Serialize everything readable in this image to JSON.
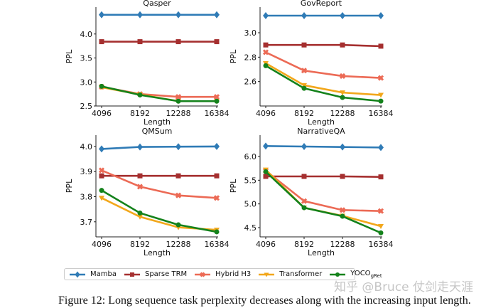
{
  "series_style": [
    {
      "name": "Mamba",
      "color": "#2f7bb6",
      "marker": "diamond"
    },
    {
      "name": "Sparse TRM",
      "color": "#a52f2f",
      "marker": "square"
    },
    {
      "name": "Hybrid H3",
      "color": "#ec6a55",
      "marker": "x"
    },
    {
      "name": "Transformer",
      "color": "#f2a71b",
      "marker": "triangle-down"
    },
    {
      "name": "YOCO",
      "name_sub": "gRet",
      "color": "#14821b",
      "marker": "circle"
    }
  ],
  "legend": {
    "items": [
      "Mamba",
      "Sparse TRM",
      "Hybrid H3",
      "Transformer",
      "YOCO"
    ],
    "yoco_sub": "gRet",
    "placement": "bottom"
  },
  "caption": "Figure 12: Long sequence task perplexity decreases along with the increasing input length.",
  "watermark": "知乎 @Bruce 仗剑走天涯",
  "chart_data": [
    {
      "type": "line",
      "title": "Qasper",
      "xlabel": "Length",
      "ylabel": "PPL",
      "categories": [
        4096,
        8192,
        12288,
        16384
      ],
      "ylim": [
        2.5,
        4.56
      ],
      "yticks": [
        2.5,
        3.0,
        3.5,
        4.0
      ],
      "ytick_labels": [
        "2.5",
        "3.0",
        "3.5",
        "4.0"
      ],
      "series": [
        {
          "name": "Mamba",
          "values": [
            4.4,
            4.4,
            4.4,
            4.4
          ]
        },
        {
          "name": "Sparse TRM",
          "values": [
            3.84,
            3.84,
            3.84,
            3.84
          ]
        },
        {
          "name": "Hybrid H3",
          "values": [
            2.9,
            2.75,
            2.69,
            2.69
          ]
        },
        {
          "name": "Transformer",
          "values": [
            2.89,
            2.74,
            2.6,
            2.6
          ]
        },
        {
          "name": "YOCO",
          "values": [
            2.91,
            2.73,
            2.6,
            2.6
          ]
        }
      ]
    },
    {
      "type": "line",
      "title": "GovReport",
      "xlabel": "Length",
      "ylabel": "PPL",
      "categories": [
        4096,
        8192,
        12288,
        16384
      ],
      "ylim": [
        2.4,
        3.21
      ],
      "yticks": [
        2.6,
        2.8,
        3.0
      ],
      "ytick_labels": [
        "2.6",
        "2.8",
        "3.0"
      ],
      "series": [
        {
          "name": "Mamba",
          "values": [
            3.14,
            3.14,
            3.14,
            3.14
          ]
        },
        {
          "name": "Sparse TRM",
          "values": [
            2.9,
            2.9,
            2.9,
            2.89
          ]
        },
        {
          "name": "Hybrid H3",
          "values": [
            2.84,
            2.69,
            2.645,
            2.63
          ]
        },
        {
          "name": "Transformer",
          "values": [
            2.75,
            2.57,
            2.51,
            2.49
          ]
        },
        {
          "name": "YOCO",
          "values": [
            2.73,
            2.545,
            2.47,
            2.44
          ]
        }
      ]
    },
    {
      "type": "line",
      "title": "QMSum",
      "xlabel": "Length",
      "ylabel": "PPL",
      "categories": [
        4096,
        8192,
        12288,
        16384
      ],
      "ylim": [
        3.64,
        4.045
      ],
      "yticks": [
        3.7,
        3.8,
        3.9,
        4.0
      ],
      "ytick_labels": [
        "3.7",
        "3.8",
        "3.9",
        "4.0"
      ],
      "series": [
        {
          "name": "Mamba",
          "values": [
            3.99,
            3.998,
            3.999,
            4.0
          ]
        },
        {
          "name": "Sparse TRM",
          "values": [
            3.883,
            3.883,
            3.883,
            3.883
          ]
        },
        {
          "name": "Hybrid H3",
          "values": [
            3.905,
            3.84,
            3.805,
            3.795
          ]
        },
        {
          "name": "Transformer",
          "values": [
            3.795,
            3.72,
            3.678,
            3.668
          ]
        },
        {
          "name": "YOCO",
          "values": [
            3.825,
            3.735,
            3.688,
            3.66
          ]
        }
      ]
    },
    {
      "type": "line",
      "title": "NarrativeQA",
      "xlabel": "Length",
      "ylabel": "PPL",
      "categories": [
        4096,
        8192,
        12288,
        16384
      ],
      "ylim": [
        4.305,
        6.45
      ],
      "yticks": [
        4.5,
        5.0,
        5.5,
        6.0
      ],
      "ytick_labels": [
        "4.5",
        "5.0",
        "5.5",
        "6.0"
      ],
      "series": [
        {
          "name": "Mamba",
          "values": [
            6.22,
            6.21,
            6.2,
            6.19
          ]
        },
        {
          "name": "Sparse TRM",
          "values": [
            5.58,
            5.58,
            5.58,
            5.57
          ]
        },
        {
          "name": "Hybrid H3",
          "values": [
            5.7,
            5.06,
            4.87,
            4.85
          ]
        },
        {
          "name": "Transformer",
          "values": [
            5.72,
            4.92,
            4.75,
            4.53
          ]
        },
        {
          "name": "YOCO",
          "values": [
            5.68,
            4.92,
            4.74,
            4.39
          ]
        }
      ]
    }
  ]
}
